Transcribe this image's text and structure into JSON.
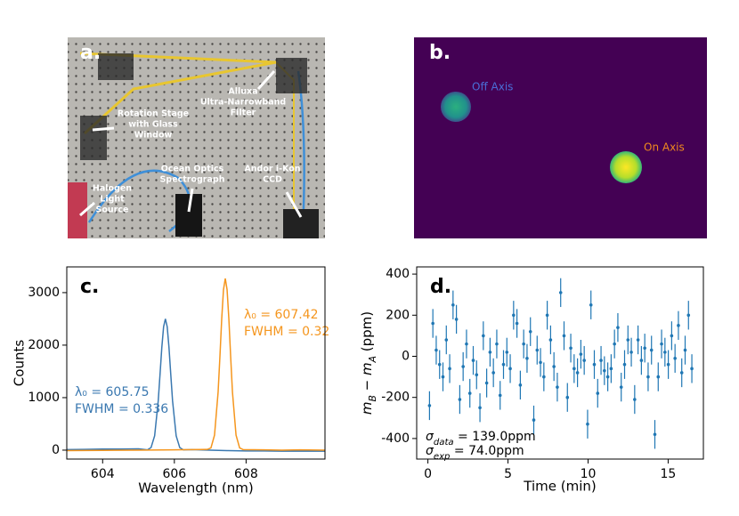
{
  "setup_photo": {
    "label": "a.",
    "annotations": [
      {
        "lines": [
          "Alluxa",
          "Ultra-Narrowband",
          "Filter"
        ]
      },
      {
        "lines": [
          "Rotation Stage",
          "with Glass",
          "Window"
        ]
      },
      {
        "lines": [
          "Ocean Optics",
          "Spectrograph"
        ]
      },
      {
        "lines": [
          "Andor i-Kon",
          "CCD"
        ]
      },
      {
        "lines": [
          "Halogen",
          "Light",
          "Source"
        ]
      }
    ]
  },
  "camera_image": {
    "label": "b.",
    "annotations": [
      {
        "text": "Off Axis",
        "color": "#4a6fd8"
      },
      {
        "text": "On Axis",
        "color": "#f08a1e"
      }
    ]
  },
  "chart_data": [
    {
      "type": "line",
      "panel_label": "c.",
      "xlabel": "Wavelength (nm)",
      "ylabel": "Counts",
      "xlim": [
        603.0,
        610.2
      ],
      "ylim": [
        -170,
        3490
      ],
      "xticks": [
        604,
        606,
        608
      ],
      "yticks": [
        0,
        1000,
        2000,
        3000
      ],
      "series": [
        {
          "color": "#3a78b0",
          "x": [
            603.0,
            603.5,
            604.0,
            604.5,
            605.0,
            605.25,
            605.35,
            605.45,
            605.55,
            605.6,
            605.65,
            605.7,
            605.75,
            605.8,
            605.85,
            605.9,
            605.95,
            606.05,
            606.15,
            606.25,
            606.5,
            607.0,
            607.5,
            608.0,
            608.5,
            609.0,
            609.5,
            610.2
          ],
          "values": [
            10,
            15,
            20,
            20,
            25,
            5,
            49,
            274,
            936,
            1438,
            1955,
            2351,
            2500,
            2351,
            1955,
            1438,
            936,
            274,
            49,
            5,
            10,
            0,
            -10,
            -15,
            -15,
            -20,
            -20,
            -20
          ]
        },
        {
          "color": "#f5961e",
          "x": [
            603.0,
            604.0,
            605.0,
            606.0,
            606.5,
            606.92,
            607.02,
            607.12,
            607.22,
            607.27,
            607.32,
            607.37,
            607.42,
            607.47,
            607.52,
            607.57,
            607.62,
            607.72,
            607.82,
            607.92,
            608.5,
            609.0,
            609.5,
            610.2
          ],
          "values": [
            -10,
            -5,
            0,
            5,
            10,
            14,
            43,
            286,
            1107,
            1778,
            2495,
            3056,
            3270,
            3056,
            2495,
            1778,
            1107,
            286,
            43,
            10,
            5,
            0,
            5,
            0
          ]
        }
      ],
      "annotations": [
        {
          "lines": [
            "λ₀ = 605.75",
            "FWHM = 0.336"
          ],
          "color": "#3a78b0"
        },
        {
          "lines": [
            "λ₀ = 607.42",
            "FWHM = 0.32"
          ],
          "color": "#f5961e"
        }
      ]
    },
    {
      "type": "errorbar",
      "panel_label": "d.",
      "xlabel": "Time (min)",
      "ylabel": [
        {
          "text": "m",
          "italic": true
        },
        {
          "text": "B",
          "italic": true,
          "sub": true
        },
        {
          "text": " − "
        },
        {
          "text": "m",
          "italic": true
        },
        {
          "text": "A",
          "italic": true,
          "sub": true
        },
        {
          "text": " (ppm)"
        }
      ],
      "xlim": [
        -0.7,
        17.2
      ],
      "ylim": [
        -500,
        435
      ],
      "xticks": [
        0,
        5,
        10,
        15
      ],
      "yticks": [
        -400,
        -200,
        0,
        200,
        400
      ],
      "color": "#1f77b4",
      "error": 70,
      "x": [
        0.1,
        0.31,
        0.52,
        0.73,
        0.94,
        1.15,
        1.36,
        1.57,
        1.78,
        1.99,
        2.2,
        2.41,
        2.62,
        2.83,
        3.04,
        3.25,
        3.46,
        3.67,
        3.88,
        4.09,
        4.3,
        4.51,
        4.72,
        4.93,
        5.14,
        5.35,
        5.56,
        5.77,
        5.98,
        6.19,
        6.4,
        6.61,
        6.82,
        7.03,
        7.24,
        7.45,
        7.66,
        7.87,
        8.08,
        8.29,
        8.5,
        8.71,
        8.92,
        9.13,
        9.34,
        9.55,
        9.76,
        9.97,
        10.18,
        10.39,
        10.6,
        10.81,
        11.02,
        11.23,
        11.44,
        11.65,
        11.86,
        12.07,
        12.28,
        12.49,
        12.7,
        12.91,
        13.12,
        13.33,
        13.54,
        13.75,
        13.96,
        14.17,
        14.38,
        14.59,
        14.8,
        15.01,
        15.22,
        15.43,
        15.64,
        15.85,
        16.06,
        16.27,
        16.48
      ],
      "values": [
        -240,
        160,
        30,
        -40,
        -100,
        80,
        -60,
        250,
        180,
        -210,
        -50,
        60,
        -180,
        -20,
        -90,
        -250,
        100,
        -130,
        20,
        -80,
        60,
        -190,
        -40,
        20,
        -60,
        200,
        160,
        -140,
        60,
        -10,
        120,
        -310,
        30,
        -30,
        -100,
        200,
        80,
        -50,
        -150,
        310,
        100,
        -200,
        40,
        -60,
        -80,
        10,
        -20,
        -330,
        250,
        -40,
        -180,
        -20,
        -70,
        -100,
        -60,
        60,
        140,
        -150,
        -40,
        80,
        20,
        -210,
        80,
        -20,
        40,
        -100,
        30,
        -380,
        -100,
        60,
        20,
        -40,
        100,
        -10,
        150,
        -80,
        30,
        200,
        -60
      ],
      "annotations": [
        {
          "parts": [
            {
              "text": "σ",
              "italic": true
            },
            {
              "text": "data",
              "italic": true,
              "sub": true
            },
            {
              "text": " = 139.0ppm"
            }
          ]
        },
        {
          "parts": [
            {
              "text": "σ",
              "italic": true
            },
            {
              "text": "exp",
              "italic": true,
              "sub": true
            },
            {
              "text": " = 74.0ppm"
            }
          ]
        }
      ]
    }
  ]
}
